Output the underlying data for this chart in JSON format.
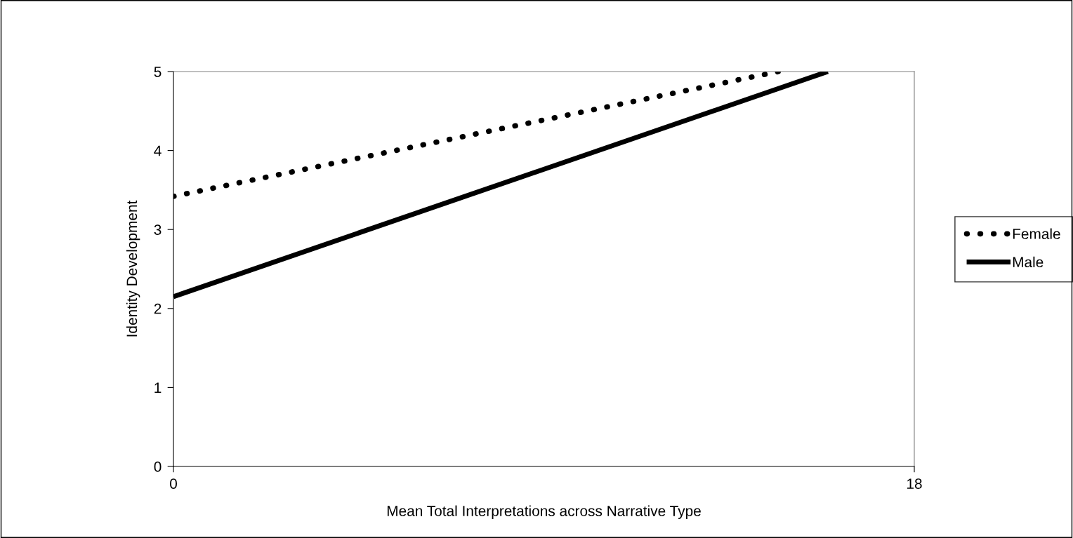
{
  "chart_data": {
    "type": "line",
    "xlabel": "Mean Total Interpretations across Narrative Type",
    "ylabel": "Identity Development",
    "series": [
      {
        "name": "Female",
        "color": "#000000",
        "line_style": "dotted",
        "x": [
          0,
          14.7
        ],
        "values": [
          3.42,
          5
        ]
      },
      {
        "name": "Male",
        "color": "#000000",
        "line_style": "solid",
        "x": [
          0,
          15.9
        ],
        "values": [
          2.15,
          5
        ]
      }
    ],
    "xlim": [
      0,
      18
    ],
    "xticks": [
      0,
      18
    ],
    "ylim": [
      0,
      5
    ],
    "yticks": [
      0,
      1,
      2,
      3,
      4,
      5
    ],
    "grid": false,
    "legend": "right",
    "marker": "none"
  }
}
